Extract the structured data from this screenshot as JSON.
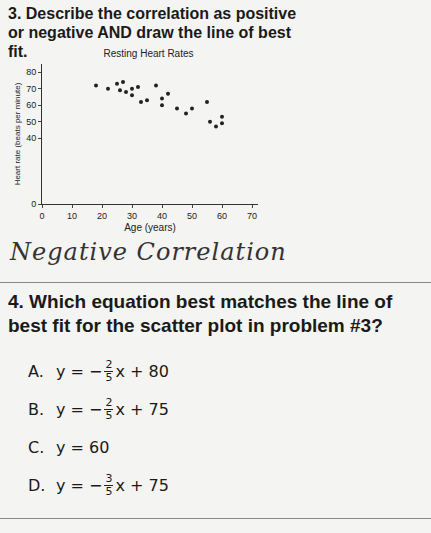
{
  "problem_3": {
    "text": "3. Describe the correlation as positive or negative AND draw the line of best fit."
  },
  "chart_data": {
    "type": "scatter",
    "title": "Resting Heart Rates",
    "x_label": "Age (years)",
    "y_label": "Heart rate (beats per minute)",
    "x": [
      18,
      22,
      25,
      26,
      27,
      28,
      30,
      30,
      32,
      33,
      35,
      38,
      40,
      40,
      42,
      45,
      48,
      50,
      55,
      56,
      58,
      60,
      60
    ],
    "values": [
      72,
      70,
      73,
      69,
      74,
      68,
      70,
      66,
      71,
      62,
      63,
      72,
      64,
      60,
      67,
      58,
      55,
      58,
      62,
      50,
      47,
      53,
      49
    ],
    "color": "#222222",
    "marker": "circle",
    "xlim": [
      0,
      72
    ],
    "xticks": [
      0,
      10,
      20,
      30,
      40,
      50,
      60,
      70
    ],
    "ylim": [
      0,
      85
    ],
    "yticks": [
      0,
      40,
      50,
      60,
      70,
      80
    ],
    "grid": false
  },
  "handwritten_answer": "Negative Correlation",
  "problem_4": {
    "text": "4. Which equation best matches the line of best fit for the scatter plot in problem #3?",
    "options": [
      {
        "label": "A.",
        "prefix": "y = −",
        "numerator": "2",
        "denominator": "5",
        "suffix": "x + 80"
      },
      {
        "label": "B.",
        "prefix": "y = −",
        "numerator": "2",
        "denominator": "5",
        "suffix": "x + 75"
      },
      {
        "label": "C.",
        "prefix": "y = 60"
      },
      {
        "label": "D.",
        "prefix": "y = −",
        "numerator": "3",
        "denominator": "5",
        "suffix": "x + 75"
      }
    ]
  }
}
